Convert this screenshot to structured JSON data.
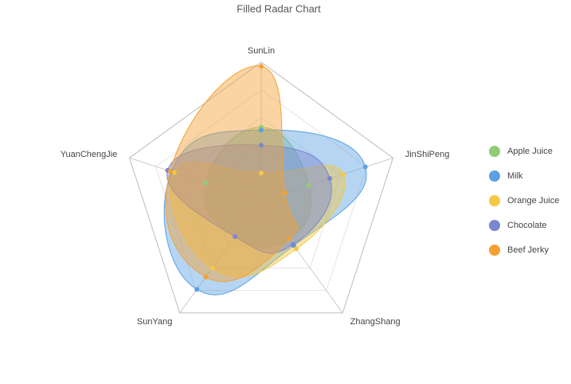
{
  "chart_data": {
    "type": "radar",
    "title": "Filled Radar Chart",
    "categories": [
      "SunLin",
      "JinShiPeng",
      "ZhangShang",
      "SunYang",
      "YuanChengJie"
    ],
    "rlim": [
      0,
      100
    ],
    "series": [
      {
        "name": "Apple Juice",
        "color": "#91cc75",
        "values": [
          53,
          36,
          34,
          32,
          42
        ]
      },
      {
        "name": "Milk",
        "color": "#5aa1e3",
        "values": [
          51,
          79,
          40,
          79,
          68
        ]
      },
      {
        "name": "Orange Juice",
        "color": "#f5c842",
        "values": [
          20,
          62,
          43,
          60,
          66
        ]
      },
      {
        "name": "Chocolate",
        "color": "#7a86cf",
        "values": [
          40,
          52,
          39,
          32,
          71
        ]
      },
      {
        "name": "Beef Jerky",
        "color": "#f5a033",
        "values": [
          97,
          18,
          34,
          68,
          69
        ]
      }
    ]
  }
}
